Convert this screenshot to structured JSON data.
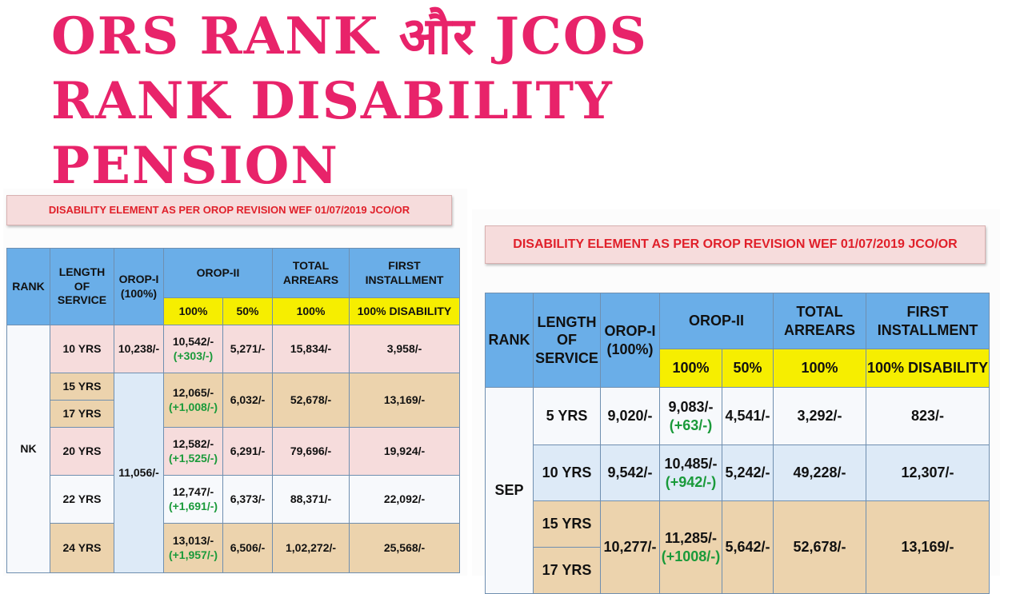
{
  "headline": {
    "line1": "ORS RANK  और JCOS",
    "line2": "RANK DISABILITY",
    "line3": "PENSION"
  },
  "left_table": {
    "banner": "DISABILITY  ELEMENT AS PER OROP REVISION  WEF 01/07/2019 JCO/OR",
    "headers": {
      "rank": "RANK",
      "length": "LENGTH OF SERVICE",
      "orop1": "OROP-I (100%)",
      "orop2": "OROP-II",
      "total": "TOTAL ARREARS",
      "first": "FIRST INSTALLMENT"
    },
    "subheaders": {
      "orop2_100": "100%",
      "orop2_50": "50%",
      "total_100": "100%",
      "first_100": "100% DISABILITY"
    },
    "rank": "NK",
    "orop1_shared": "11,056/-",
    "rows": [
      {
        "los": "10 YRS",
        "orop1": "10,238/-",
        "orop2_100": "10,542/-",
        "orop2_change": "(+303/-)",
        "orop2_50": "5,271/-",
        "total": "15,834/-",
        "first": "3,958/-"
      },
      {
        "los": "15 YRS",
        "los2": "17 YRS",
        "orop2_100": "12,065/-",
        "orop2_change": "(+1,008/-)",
        "orop2_50": "6,032/-",
        "total": "52,678/-",
        "first": "13,169/-"
      },
      {
        "los": "20 YRS",
        "orop2_100": "12,582/-",
        "orop2_change": "(+1,525/-)",
        "orop2_50": "6,291/-",
        "total": "79,696/-",
        "first": "19,924/-"
      },
      {
        "los": "22 YRS",
        "orop2_100": "12,747/-",
        "orop2_change": "(+1,691/-)",
        "orop2_50": "6,373/-",
        "total": "88,371/-",
        "first": "22,092/-"
      },
      {
        "los": "24 YRS",
        "orop2_100": "13,013/-",
        "orop2_change": "(+1,957/-)",
        "orop2_50": "6,506/-",
        "total": "1,02,272/-",
        "first": "25,568/-"
      }
    ]
  },
  "right_table": {
    "banner": "DISABILITY  ELEMENT AS PER OROP REVISION  WEF 01/07/2019 JCO/OR",
    "headers": {
      "rank": "RANK",
      "length": "LENGTH OF SERVICE",
      "orop1": "OROP-I (100%)",
      "orop2": "OROP-II",
      "total": "TOTAL ARREARS",
      "first": "FIRST INSTALLMENT"
    },
    "subheaders": {
      "orop2_100": "100%",
      "orop2_50": "50%",
      "total_100": "100%",
      "first_100": "100% DISABILITY"
    },
    "rank": "SEP",
    "rows": [
      {
        "los": "5 YRS",
        "orop1": "9,020/-",
        "orop2_100": "9,083/-",
        "orop2_change": "(+63/-)",
        "orop2_50": "4,541/-",
        "total": "3,292/-",
        "first": "823/-"
      },
      {
        "los": "10 YRS",
        "orop1": "9,542/-",
        "orop2_100": "10,485/-",
        "orop2_change": "(+942/-)",
        "orop2_50": "5,242/-",
        "total": "49,228/-",
        "first": "12,307/-"
      },
      {
        "los": "15 YRS",
        "los2": "17 YRS",
        "orop1": "10,277/-",
        "orop2_100": "11,285/-",
        "orop2_change": "(+1008/-)",
        "orop2_50": "5,642/-",
        "total": "52,678/-",
        "first": "13,169/-"
      }
    ]
  },
  "colors": {
    "headline": "#e8236a",
    "header_blue": "#6aaee8",
    "subheader_yellow": "#f6ee00",
    "row_pink": "#f6dcdc",
    "row_tan": "#ecd3ad",
    "row_light_blue": "#ddeaf7",
    "banner_text": "#e0202a",
    "change_green": "#1a9a3a"
  }
}
